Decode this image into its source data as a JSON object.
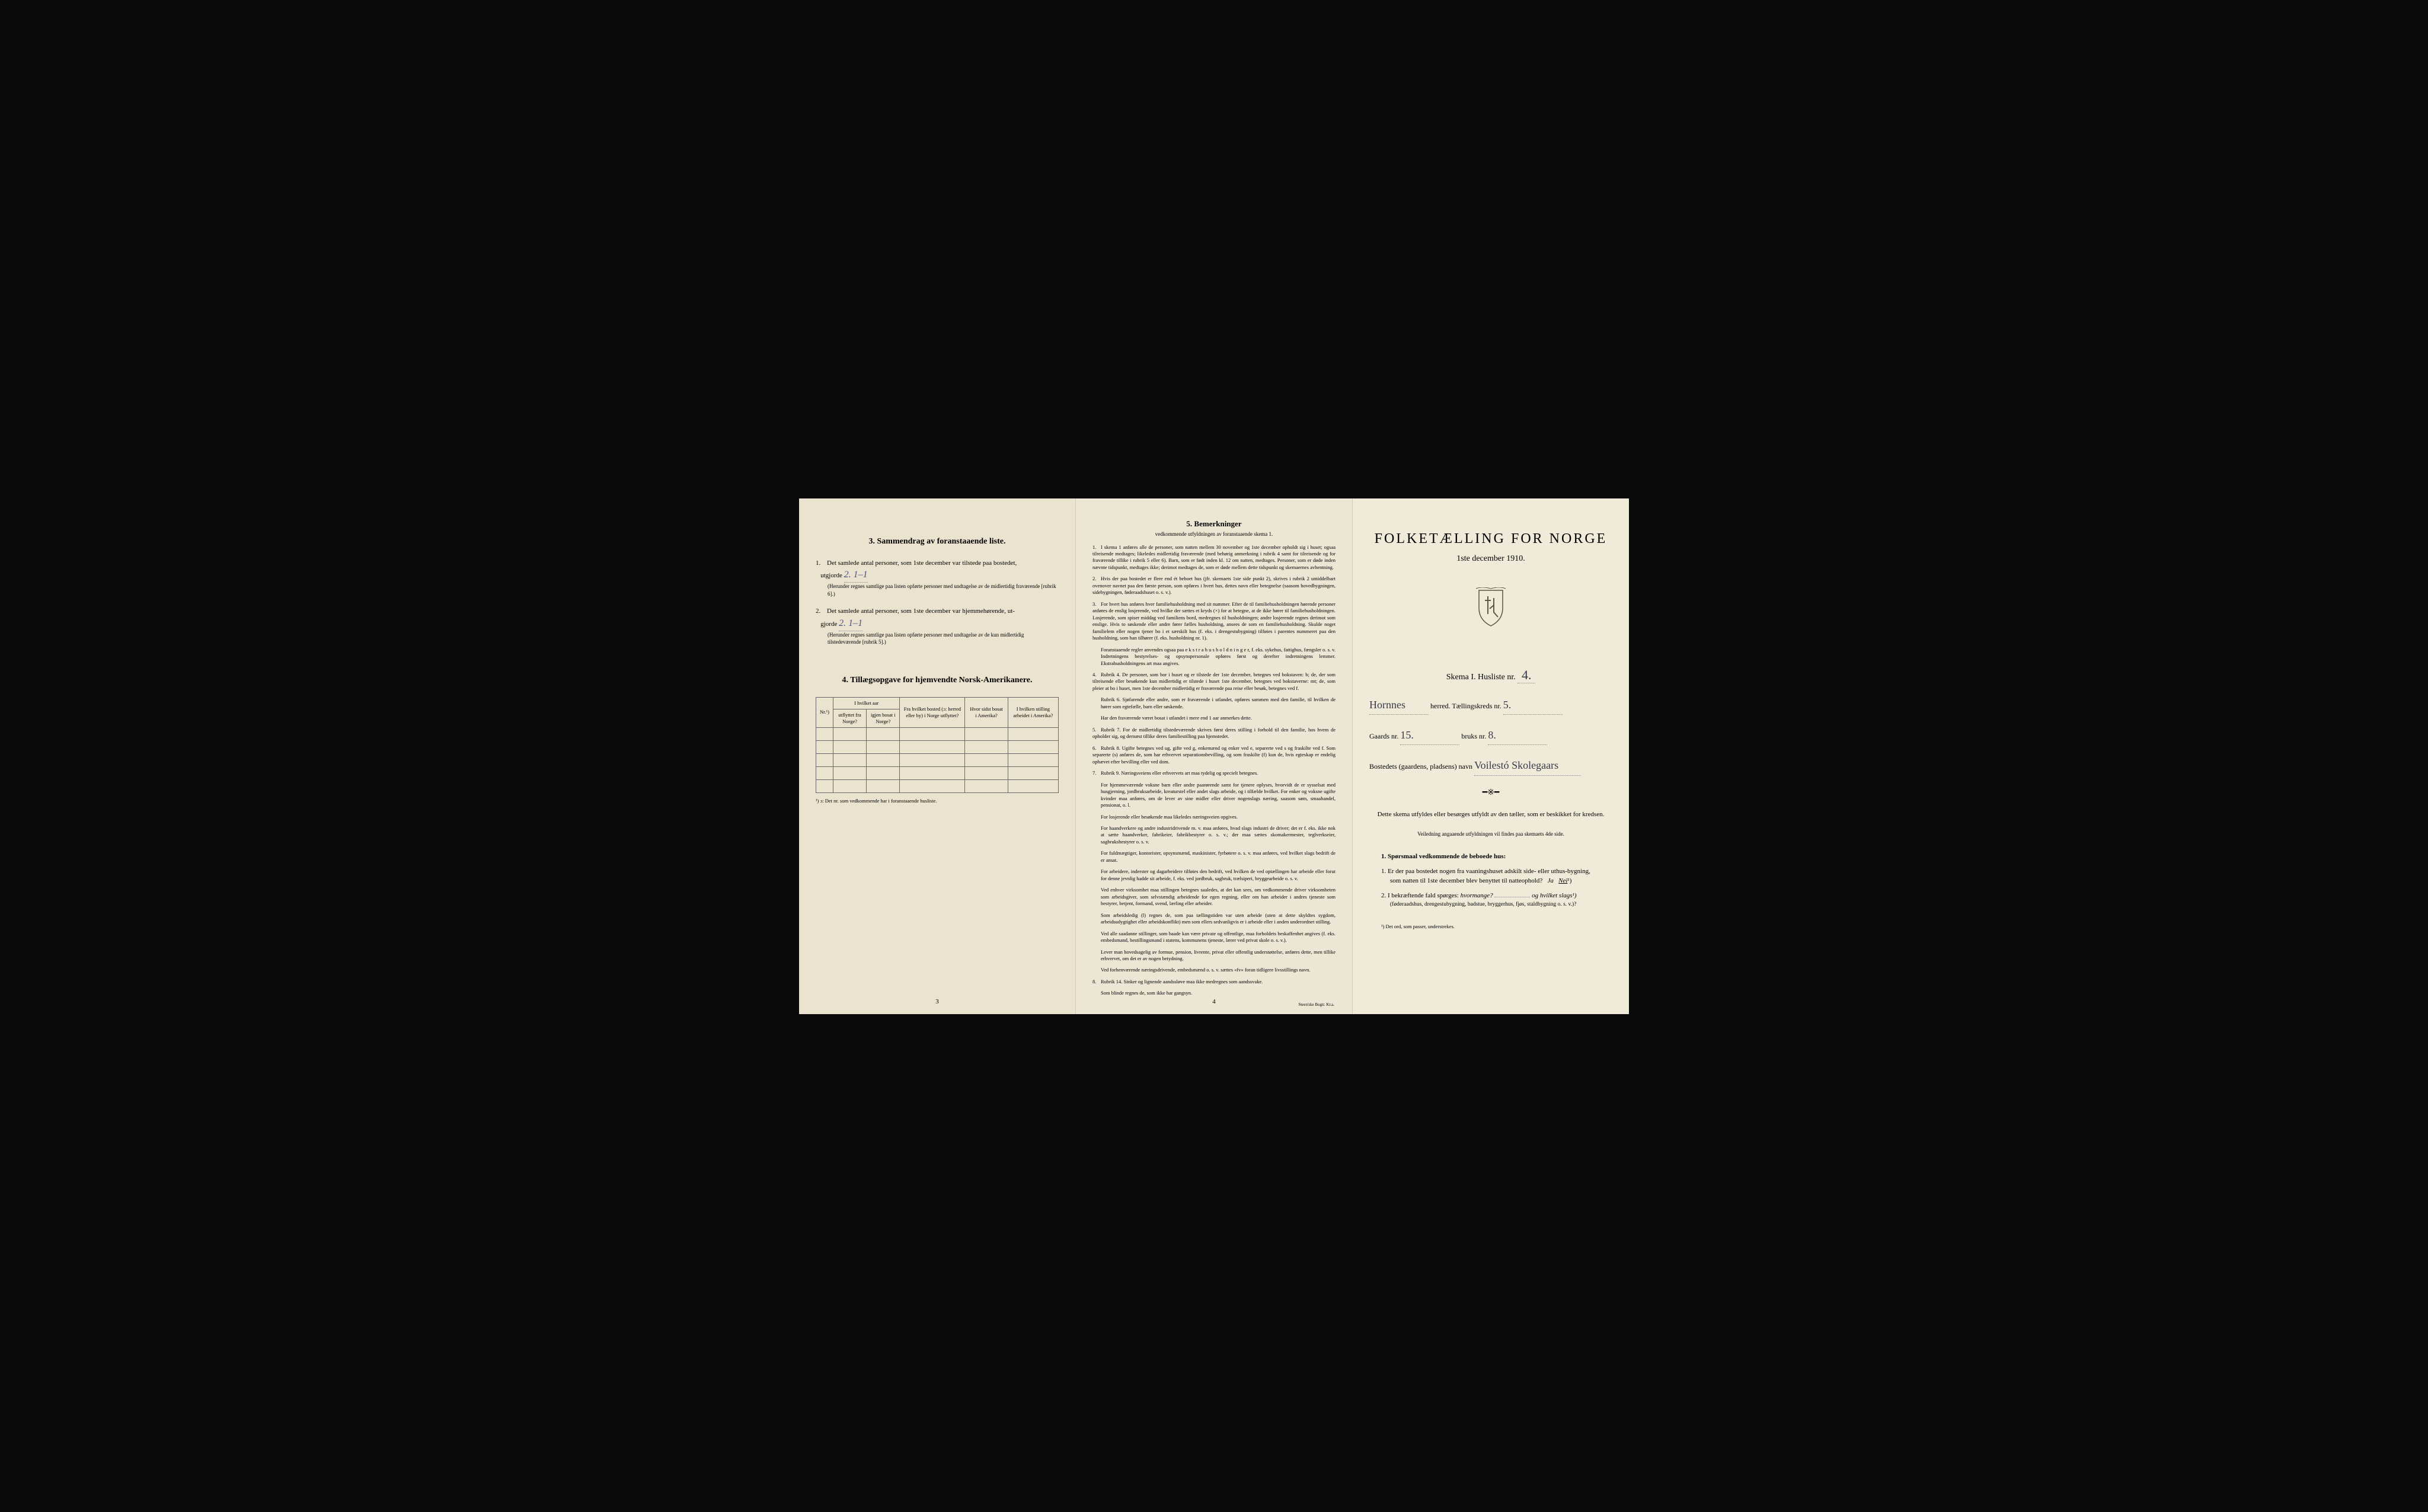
{
  "page1": {
    "section3_title": "3.   Sammendrag av foranstaaende liste.",
    "item1_prefix": "1.",
    "item1_text": "Det samlede antal personer, som 1ste december var tilstede paa bostedet,",
    "item1_label": "utgjorde",
    "item1_value": "2.    1–1",
    "item1_note": "(Herunder regnes samtlige paa listen opførte personer med undtagelse av de midlertidig fraværende [rubrik 6].)",
    "item2_prefix": "2.",
    "item2_text": "Det samlede antal personer, som 1ste december var hjemmehørende, ut-",
    "item2_label": "gjorde",
    "item2_value": "2.    1–1",
    "item2_note": "(Herunder regnes samtlige paa listen opførte personer med undtagelse av de kun midlertidig tilstedeværende [rubrik 5].)",
    "section4_title": "4.   Tillægsopgave for hjemvendte Norsk-Amerikanere.",
    "table": {
      "headers": {
        "nr": "Nr.¹)",
        "col1_top": "I hvilket aar",
        "col1a": "utflyttet fra Norge?",
        "col1b": "igjen bosat i Norge?",
        "col2": "Fra hvilket bosted (ɔ: herred eller by) i Norge utflyttet?",
        "col3": "Hvor sidst bosat i Amerika?",
        "col4": "I hvilken stilling arbeidet i Amerika?"
      }
    },
    "footnote": "¹) ɔ: Det nr. som vedkommende har i foranstaaende husliste.",
    "page_num": "3"
  },
  "page2": {
    "title": "5.   Bemerkninger",
    "subtitle": "vedkommende utfyldningen av foranstaaende skema 1.",
    "items": [
      {
        "n": "1.",
        "t": "I skema 1 anføres alle de personer, som natten mellem 30 november og 1ste december opholdt sig i huset; ogsaa tilreisende medtages; likeledes midlertidig fraværende (med behørig anmerkning i rubrik 4 samt for tilreisende og for fraværende tillike i rubrik 5 eller 6). Barn, som er født inden kl. 12 om natten, medtages. Personer, som er døde inden nævnte tidspunkt, medtages ikke; derimot medtages de, som er døde mellem dette tidspunkt og skemaernes avhentning."
      },
      {
        "n": "2.",
        "t": "Hvis der paa bostedet er flere end ét beboet hus (jfr. skemaets 1ste side punkt 2), skrives i rubrik 2 umiddelbart ovenover navnet paa den første person, som opføres i hvert hus, dettes navn eller betegnelse (saasom hovedbygningen, sidebygningen, føderaadshuset o. s. v.)."
      },
      {
        "n": "3.",
        "t": "For hvert hus anføres hver familiehusholdning med sit nummer. Efter de til familiehusholdningen hørende personer anføres de enslig losjerende, ved hvilke der sættes et kryds (×) for at betegne, at de ikke hører til familiehusholdningen. Losjerende, som spiser middag ved familiens bord, medregnes til husholdningen; andre losjerende regnes derimot som enslige. Hvis to søskende eller andre fører fælles husholdning, ansees de som en familiehusholdning. Skulde noget familielem eller nogen tjener bo i et særskilt hus (f. eks. i drengestubygning) tilføies i parentes nummeret paa den husholdning, som han tilhører (f. eks. husholdning nr. 1)."
      },
      {
        "n": "",
        "t": "Foranstaaende regler anvendes ogsaa paa e k s t r a h u s h o l d n i n g e r, f. eks. sykehus, fattighus, fængsler o. s. v. Indretningens bestyrelses- og opsynspersonale opføres først og derefter indretningens lemmer. Ekstrahusholdningens art maa angives."
      },
      {
        "n": "4.",
        "t": "Rubrik 4. De personer, som bor i huset og er tilstede der 1ste december, betegnes ved bokstaven: b; de, der som tilreisende eller besøkende kun midlertidig er tilstede i huset 1ste december, betegnes ved bokstaverne: mt; de, som pleier at bo i huset, men 1ste december midlertidig er fraværende paa reise eller besøk, betegnes ved f."
      },
      {
        "n": "",
        "t": "Rubrik 6. Sjøfarende eller andre, som er fraværende i utlandet, opføres sammen med den familie, til hvilken de hører som egtefælle, barn eller søskende."
      },
      {
        "n": "",
        "t": "Har den fraværende været bosat i utlandet i mere end 1 aar anmerkes dette."
      },
      {
        "n": "5.",
        "t": "Rubrik 7. For de midlertidig tilstedeværende skrives først deres stilling i forhold til den familie, hos hvem de opholder sig, og dernæst tillike deres familiestilling paa hjemstedet."
      },
      {
        "n": "6.",
        "t": "Rubrik 8. Ugifte betegnes ved ug, gifte ved g, enkemænd og enker ved e, separerte ved s og fraskilte ved f. Som separerte (s) anføres de, som har erhvervet separationsbevilling, og som fraskilte (f) kun de, hvis egteskap er endelig ophævet efter bevilling eller ved dom."
      },
      {
        "n": "7.",
        "t": "Rubrik 9. Næringsveiens eller erhvervets art maa tydelig og specielt betegnes."
      },
      {
        "n": "",
        "t": "For hjemmeværende voksne barn eller andre paarørende samt for tjenere oplyses, hvorvidt de er sysselsat med husgjerning, jordbruksarbeide, kreaturstel eller andet slags arbeide, og i tilfælde hvilket. For enker og voksne ugifte kvinder maa anføres, om de lever av sine midler eller driver nogenslags næring, saasom søm, smaahandel, pensionat, o. l."
      },
      {
        "n": "",
        "t": "For losjerende eller besøkende maa likeledes næringsveien opgives."
      },
      {
        "n": "",
        "t": "For haandverkere og andre industridrivende m. v. maa anføres, hvad slags industri de driver; det er f. eks. ikke nok at sætte haandverker, fabrikeier, fabrikbestyrer o. s. v.; der maa sættes skomakermester, teglverkseier, sagbruksbestyrer o. s. v."
      },
      {
        "n": "",
        "t": "For fuldmægtiger, kontorister, opsynsmænd, maskinister, fyrbøtere o. s. v. maa anføres, ved hvilket slags bedrift de er ansat."
      },
      {
        "n": "",
        "t": "For arbeidere, inderster og dagarbeidere tilføies den bedrift, ved hvilken de ved optællingen har arbeide eller forut for denne jevnlig hadde sit arbeide, f. eks. ved jordbruk, sagbruk, trælsiperi, bryggearbeide o. s. v."
      },
      {
        "n": "",
        "t": "Ved enhver virksomhet maa stillingen betegnes saaledes, at det kan sees, om vedkommende driver virksomheten som arbeidsgiver, som selvstændig arbeidende for egen regning, eller om han arbeider i andres tjeneste som bestyrer, betjent, formand, svend, lærling eller arbeider."
      },
      {
        "n": "",
        "t": "Som arbeidsledig (l) regnes de, som paa tællingstiden var uten arbeide (uten at dette skyldtes sygdom, arbeidsudygtighet eller arbeidskonflikt) men som ellers sedvanligvis er i arbeide eller i anden underordnet stilling."
      },
      {
        "n": "",
        "t": "Ved alle saadanne stillinger, som baade kan være private og offentlige, maa forholdets beskaffenhet angives (f. eks. embedsmand, bestillingsmand i statens, kommunens tjeneste, lærer ved privat skole o. s. v.)."
      },
      {
        "n": "",
        "t": "Lever man hovedsagelig av formue, pension, livrente, privat eller offentlig understøttelse, anføres dette, men tillike erhvervet, om det er av nogen betydning."
      },
      {
        "n": "",
        "t": "Ved forhenværende næringsdrivende, embedsmænd o. s. v. sættes «fv» foran tidligere livsstillings navn."
      },
      {
        "n": "8.",
        "t": "Rubrik 14. Sinker og lignende aandssløve maa ikke medregnes som aandssvake."
      },
      {
        "n": "",
        "t": "Som blinde regnes de, som ikke har gangsyn."
      }
    ],
    "page_num": "4",
    "printer": "Steen'ske Bogtr.   Kr.a."
  },
  "page3": {
    "main_title": "FOLKETÆLLING FOR NORGE",
    "date": "1ste december 1910.",
    "skema_label": "Skema I.   Husliste nr.",
    "skema_value": "4.",
    "herred_value": "Hornnes",
    "herred_suffix": "herred.   Tællingskreds nr.",
    "kreds_value": "5.",
    "gaards_label": "Gaards nr.",
    "gaards_value": "15.",
    "bruks_label": "bruks nr.",
    "bruks_value": "8.",
    "bosted_label": "Bostedets (gaardens, pladsens) navn",
    "bosted_value": "Voilestó Skolegaars",
    "instruction": "Dette skema utfyldes eller besørges utfyldt av den tæller, som er beskikket for kredsen.",
    "sub_instruction": "Veiledning angaaende utfyldningen vil findes paa skemaets 4de side.",
    "q_header": "1. Spørsmaal vedkommende de beboede hus:",
    "q1_num": "1.",
    "q1_text": "Er der paa bostedet nogen fra vaaningshuset adskilt side- eller uthus-bygning, som natten til 1ste december blev benyttet til natteophold?",
    "q1_ja": "Ja",
    "q1_nei": "Nei",
    "q1_sup": "¹)",
    "q2_num": "2.",
    "q2_text_a": "I bekræftende fald spørges:",
    "q2_text_b": "hvormange?",
    "q2_text_c": "og hvilket slags¹)",
    "q2_sub": "(føderaadshus, drengestubygning, badstue, bryggerhus, fjøs, staldbygning o. s. v.)?",
    "footnote": "¹) Det ord, som passer, understrekes."
  }
}
